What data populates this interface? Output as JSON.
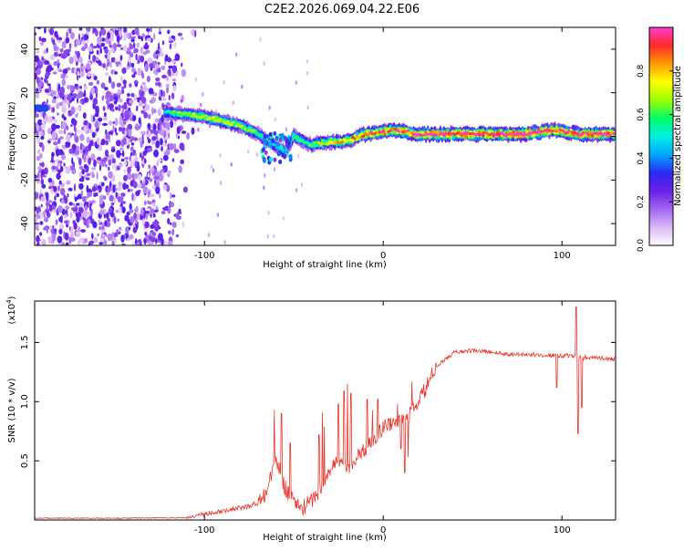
{
  "figure": {
    "title": "C2E2.2026.069.04.22.E06"
  },
  "colors": {
    "snr_line": "#e8392d",
    "colormap": [
      "#ffffff",
      "#d9b8f7",
      "#a066f0",
      "#6a1fe6",
      "#2b2bf5",
      "#00a7ff",
      "#00f0e0",
      "#00ff66",
      "#9dff00",
      "#ffff00",
      "#ff9a00",
      "#ff2a2a",
      "#ff3bd0"
    ]
  },
  "chart_data": [
    {
      "type": "heatmap",
      "xlabel": "Height of straight line (km)",
      "ylabel": "Frequency (Hz)",
      "xlim": [
        -195,
        130
      ],
      "ylim": [
        -50,
        50
      ],
      "xticks": [
        -100,
        0,
        100
      ],
      "xtick_labels": [
        "-100",
        "0",
        "100"
      ],
      "yticks": [
        -40,
        -20,
        0,
        20,
        40
      ],
      "ytick_labels": [
        "-40",
        "-20",
        "0",
        "20",
        "40"
      ],
      "colorbar": {
        "label": "Normalized spectral amplitude",
        "range": [
          0,
          1
        ],
        "ticks": [
          0.0,
          0.2,
          0.4,
          0.6,
          0.8
        ],
        "tick_labels": [
          "0.0",
          "0.2",
          "0.4",
          "0.6",
          "0.8"
        ]
      },
      "noise_region": {
        "x": [
          -195,
          -105
        ],
        "y": [
          -50,
          50
        ],
        "amplitude": [
          0.05,
          0.3
        ]
      },
      "ridge": [
        {
          "x": -195,
          "y": 13,
          "amp": 0.35
        },
        {
          "x": -190,
          "y": 13,
          "amp": 0.4
        },
        {
          "x": -120,
          "y": 11,
          "amp": 0.55
        },
        {
          "x": -110,
          "y": 10,
          "amp": 0.65
        },
        {
          "x": -100,
          "y": 9,
          "amp": 0.7
        },
        {
          "x": -90,
          "y": 7,
          "amp": 0.7
        },
        {
          "x": -80,
          "y": 5,
          "amp": 0.7
        },
        {
          "x": -70,
          "y": 1,
          "amp": 0.6
        },
        {
          "x": -62,
          "y": -3,
          "amp": 0.55
        },
        {
          "x": -55,
          "y": -7,
          "amp": 0.5
        },
        {
          "x": -50,
          "y": 0,
          "amp": 0.6
        },
        {
          "x": -40,
          "y": -4,
          "amp": 0.6
        },
        {
          "x": -35,
          "y": -3,
          "amp": 0.7
        },
        {
          "x": -20,
          "y": -2,
          "amp": 0.8
        },
        {
          "x": -10,
          "y": 1,
          "amp": 0.9
        },
        {
          "x": 0,
          "y": 2,
          "amp": 0.9
        },
        {
          "x": 5,
          "y": 3,
          "amp": 0.9
        },
        {
          "x": 20,
          "y": 1,
          "amp": 0.95
        },
        {
          "x": 50,
          "y": 1,
          "amp": 1.0
        },
        {
          "x": 80,
          "y": 1,
          "amp": 1.0
        },
        {
          "x": 95,
          "y": 3,
          "amp": 0.95
        },
        {
          "x": 110,
          "y": 1,
          "amp": 0.95
        },
        {
          "x": 130,
          "y": 1,
          "amp": 0.95
        }
      ]
    },
    {
      "type": "line",
      "xlabel": "Height of straight line (km)",
      "ylabel": "SNR (10 * v/v)",
      "multiplier_label": "(x10",
      "multiplier_exp": "4",
      "multiplier_close": ")",
      "xlim": [
        -195,
        130
      ],
      "ylim": [
        0,
        18500
      ],
      "xticks": [
        -100,
        0,
        100
      ],
      "xtick_labels": [
        "-100",
        "0",
        "100"
      ],
      "yticks": [
        5000,
        10000,
        15000
      ],
      "ytick_labels": [
        "0.5",
        "1.0",
        "1.5"
      ],
      "series": [
        {
          "name": "SNR",
          "points": [
            [
              -195,
              150
            ],
            [
              -150,
              150
            ],
            [
              -110,
              200
            ],
            [
              -100,
              500
            ],
            [
              -90,
              800
            ],
            [
              -80,
              1000
            ],
            [
              -70,
              1400
            ],
            [
              -65,
              2500
            ],
            [
              -60,
              5200
            ],
            [
              -55,
              2800
            ],
            [
              -50,
              1500
            ],
            [
              -45,
              1000
            ],
            [
              -40,
              1700
            ],
            [
              -35,
              2500
            ],
            [
              -30,
              4200
            ],
            [
              -25,
              5000
            ],
            [
              -20,
              4500
            ],
            [
              -15,
              5200
            ],
            [
              -10,
              6000
            ],
            [
              -5,
              7000
            ],
            [
              0,
              7800
            ],
            [
              5,
              8300
            ],
            [
              10,
              8200
            ],
            [
              15,
              9000
            ],
            [
              20,
              10000
            ],
            [
              25,
              11500
            ],
            [
              30,
              13000
            ],
            [
              40,
              14200
            ],
            [
              50,
              14300
            ],
            [
              60,
              14200
            ],
            [
              70,
              14000
            ],
            [
              80,
              14000
            ],
            [
              90,
              13900
            ],
            [
              100,
              13900
            ],
            [
              110,
              13800
            ],
            [
              120,
              13700
            ],
            [
              130,
              13600
            ]
          ],
          "spikes": [
            [
              -61,
              9300
            ],
            [
              -57,
              9000
            ],
            [
              -52,
              6500
            ],
            [
              -36,
              7200
            ],
            [
              -34,
              9100
            ],
            [
              -33,
              7900
            ],
            [
              -25,
              9800
            ],
            [
              -22,
              10900
            ],
            [
              -20,
              11500
            ],
            [
              -18,
              10700
            ],
            [
              -9,
              10200
            ],
            [
              -6,
              9300
            ],
            [
              -3,
              10200
            ],
            [
              8,
              9800
            ],
            [
              12,
              12000
            ],
            [
              14,
              10300
            ],
            [
              16,
              11700
            ],
            [
              100,
              13700
            ],
            [
              108,
              18000
            ],
            [
              109,
              15500
            ],
            [
              112,
              13500
            ]
          ],
          "dips": [
            [
              10,
              6000
            ],
            [
              12,
              4000
            ],
            [
              14,
              5300
            ],
            [
              97,
              11200
            ],
            [
              109,
              7300
            ],
            [
              111,
              9500
            ]
          ]
        }
      ]
    }
  ]
}
